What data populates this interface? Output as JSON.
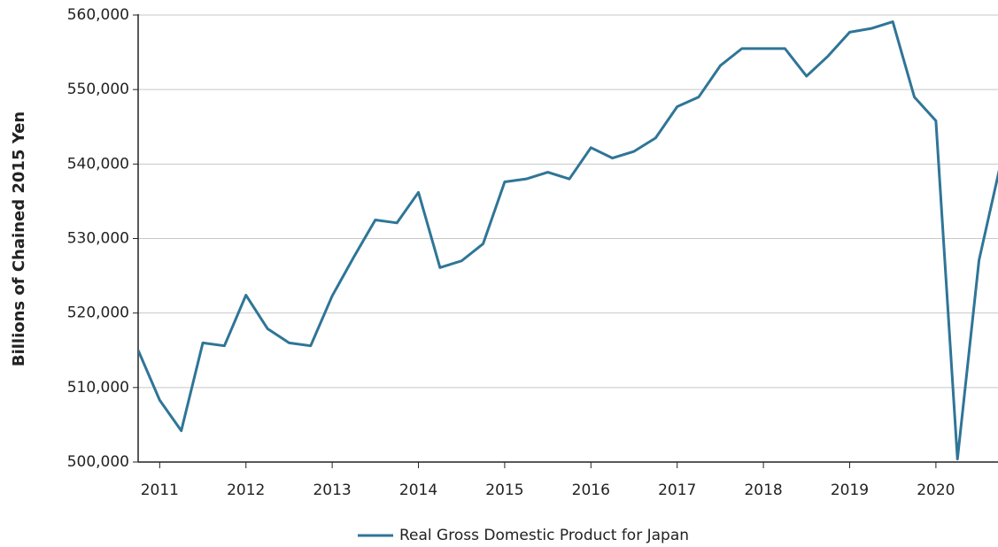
{
  "chart_data": {
    "type": "line",
    "y_label": "Billions of Chained 2015 Yen",
    "x": [
      2010.75,
      2011,
      2011.25,
      2011.5,
      2011.75,
      2012,
      2012.25,
      2012.5,
      2012.75,
      2013,
      2013.25,
      2013.5,
      2013.75,
      2014,
      2014.25,
      2014.5,
      2014.75,
      2015,
      2015.25,
      2015.5,
      2015.75,
      2016,
      2016.25,
      2016.5,
      2016.75,
      2017,
      2017.25,
      2017.5,
      2017.75,
      2018,
      2018.25,
      2018.5,
      2018.75,
      2019,
      2019.25,
      2019.5,
      2019.75,
      2020,
      2020.25,
      2020.5,
      2020.75
    ],
    "series": [
      {
        "name": "Real Gross Domestic Product for Japan",
        "color": "#2f7597",
        "values": [
          515000,
          508300,
          504200,
          516000,
          515600,
          522400,
          517900,
          516000,
          515600,
          522300,
          527500,
          532500,
          532100,
          536200,
          526100,
          527000,
          529300,
          537600,
          538000,
          538900,
          538000,
          542200,
          540800,
          541700,
          543500,
          547700,
          549000,
          553200,
          555500,
          555500,
          555500,
          551800,
          554500,
          557700,
          558200,
          559100,
          549000,
          545800,
          500400,
          527100,
          540000
        ]
      }
    ],
    "xlim": [
      2010.75,
      2020.72
    ],
    "xticks": [
      2011,
      2012,
      2013,
      2014,
      2015,
      2016,
      2017,
      2018,
      2019,
      2020
    ],
    "ylim": [
      500000,
      560000
    ],
    "yticks": [
      {
        "value": 500000,
        "label": "500,000"
      },
      {
        "value": 510000,
        "label": "510,000"
      },
      {
        "value": 520000,
        "label": "520,000"
      },
      {
        "value": 530000,
        "label": "530,000"
      },
      {
        "value": 540000,
        "label": "540,000"
      },
      {
        "value": 550000,
        "label": "550,000"
      },
      {
        "value": 560000,
        "label": "560,000"
      }
    ],
    "grid": true,
    "legend": "bottom"
  }
}
